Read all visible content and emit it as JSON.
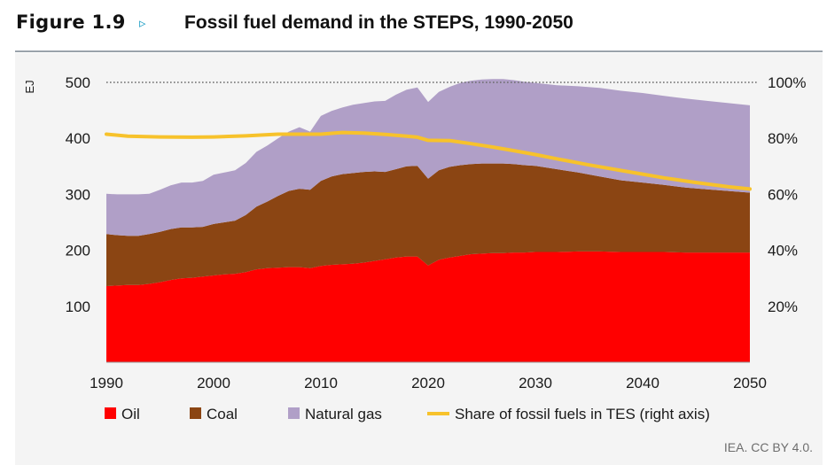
{
  "header": {
    "figure_label": "Figure 1.9",
    "arrow_glyph": "▹",
    "title": "Fossil fuel demand in the STEPS, 1990-2050"
  },
  "source": "IEA. CC BY 4.0.",
  "colors": {
    "oil": "#ff0000",
    "coal": "#8b4513",
    "gas": "#b09fc7",
    "share": "#f7c22b",
    "panel": "#f4f4f4"
  },
  "chart_data": {
    "type": "area",
    "stacked": true,
    "title": "Fossil fuel demand in the STEPS, 1990-2050",
    "xlabel": "",
    "ylabel": "EJ",
    "x": [
      1990,
      1991,
      1992,
      1993,
      1994,
      1995,
      1996,
      1997,
      1998,
      1999,
      2000,
      2001,
      2002,
      2003,
      2004,
      2005,
      2006,
      2007,
      2008,
      2009,
      2010,
      2011,
      2012,
      2013,
      2014,
      2015,
      2016,
      2017,
      2018,
      2019,
      2020,
      2021,
      2022,
      2023,
      2024,
      2025,
      2026,
      2027,
      2028,
      2029,
      2030,
      2032,
      2034,
      2036,
      2038,
      2040,
      2042,
      2044,
      2046,
      2048,
      2050
    ],
    "xlim": [
      1990,
      2050
    ],
    "x_ticks": [
      "1990",
      "2000",
      "2010",
      "2020",
      "2030",
      "2040",
      "2050"
    ],
    "ylim": [
      0,
      500
    ],
    "y_ticks": [
      "100",
      "200",
      "300",
      "400",
      "500"
    ],
    "y2lim": [
      0,
      100
    ],
    "y2_ticks": [
      "20%",
      "40%",
      "60%",
      "80%",
      "100%"
    ],
    "gridlines": "dotted at 500 EJ",
    "legend_position": "bottom",
    "series": [
      {
        "name": "Oil",
        "color": "#ff0000",
        "values": [
          136,
          137,
          138,
          138,
          140,
          143,
          147,
          150,
          151,
          153,
          155,
          157,
          158,
          161,
          166,
          168,
          169,
          170,
          170,
          168,
          172,
          174,
          175,
          176,
          178,
          181,
          184,
          187,
          189,
          189,
          173,
          183,
          187,
          190,
          193,
          194,
          195,
          195,
          196,
          196,
          197,
          197,
          198,
          198,
          197,
          197,
          197,
          196,
          196,
          196,
          196
        ]
      },
      {
        "name": "Coal",
        "color": "#8b4513",
        "values": [
          93,
          90,
          88,
          88,
          89,
          90,
          91,
          91,
          90,
          89,
          92,
          93,
          95,
          102,
          112,
          119,
          128,
          136,
          140,
          140,
          152,
          158,
          161,
          162,
          162,
          160,
          156,
          158,
          161,
          162,
          155,
          160,
          162,
          162,
          161,
          161,
          160,
          160,
          158,
          156,
          154,
          148,
          141,
          134,
          128,
          124,
          120,
          116,
          113,
          110,
          107
        ]
      },
      {
        "name": "Natural gas",
        "color": "#b09fc7",
        "values": [
          72,
          73,
          74,
          74,
          72,
          75,
          78,
          80,
          80,
          82,
          88,
          89,
          90,
          93,
          98,
          100,
          103,
          106,
          110,
          104,
          116,
          117,
          119,
          122,
          123,
          125,
          127,
          133,
          137,
          140,
          137,
          140,
          143,
          147,
          149,
          150,
          151,
          151,
          150,
          149,
          148,
          150,
          154,
          158,
          160,
          160,
          159,
          159,
          158,
          157,
          156
        ]
      },
      {
        "name": "Share of fossil fuels in TES (right axis)",
        "axis": "right",
        "color": "#f7c22b",
        "x": [
          1990,
          1992,
          1995,
          1998,
          2000,
          2003,
          2006,
          2008,
          2010,
          2012,
          2014,
          2016,
          2018,
          2019,
          2020,
          2022,
          2024,
          2026,
          2028,
          2030,
          2032,
          2035,
          2038,
          2040,
          2042,
          2045,
          2048,
          2050
        ],
        "values": [
          81.5,
          80.8,
          80.5,
          80.4,
          80.5,
          80.9,
          81.5,
          81.5,
          81.5,
          82.1,
          81.9,
          81.4,
          80.8,
          80.4,
          79.3,
          79.2,
          78.1,
          76.9,
          75.6,
          74.2,
          72.7,
          70.5,
          68.5,
          67.2,
          65.9,
          64.2,
          62.7,
          61.9
        ]
      }
    ],
    "legend": [
      "Oil",
      "Coal",
      "Natural gas",
      "Share of fossil fuels in TES (right axis)"
    ]
  }
}
